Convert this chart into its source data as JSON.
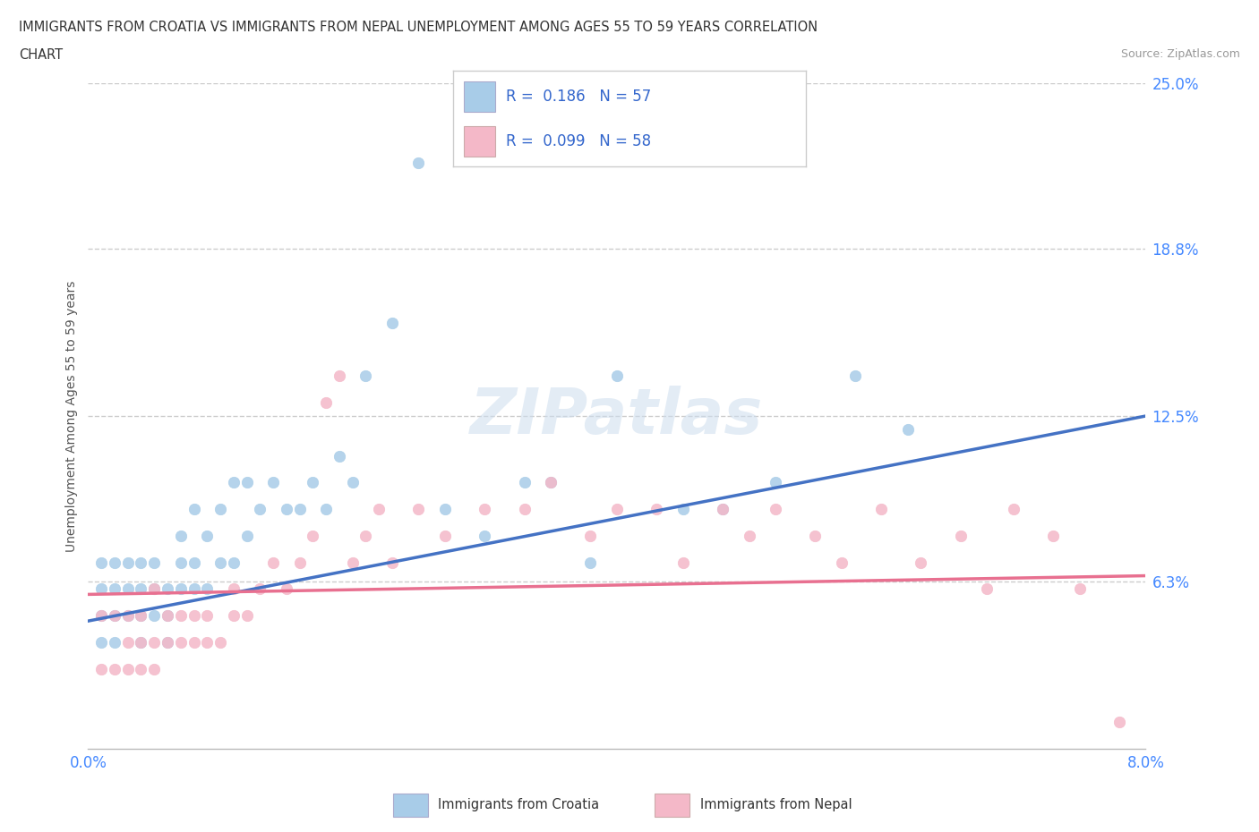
{
  "title_line1": "IMMIGRANTS FROM CROATIA VS IMMIGRANTS FROM NEPAL UNEMPLOYMENT AMONG AGES 55 TO 59 YEARS CORRELATION",
  "title_line2": "CHART",
  "source": "Source: ZipAtlas.com",
  "ylabel": "Unemployment Among Ages 55 to 59 years",
  "xlim": [
    0.0,
    0.08
  ],
  "ylim": [
    0.0,
    0.25
  ],
  "yticks": [
    0.0,
    0.063,
    0.125,
    0.188,
    0.25
  ],
  "ytick_labels": [
    "",
    "6.3%",
    "12.5%",
    "18.8%",
    "25.0%"
  ],
  "xtick_labels": [
    "0.0%",
    "8.0%"
  ],
  "xticks": [
    0.0,
    0.08
  ],
  "croatia_R": 0.186,
  "croatia_N": 57,
  "nepal_R": 0.099,
  "nepal_N": 58,
  "croatia_color": "#a8cce8",
  "nepal_color": "#f4b8c8",
  "croatia_line_color": "#4472c4",
  "nepal_line_color": "#e87090",
  "croatia_scatter_x": [
    0.001,
    0.001,
    0.001,
    0.001,
    0.002,
    0.002,
    0.002,
    0.002,
    0.003,
    0.003,
    0.003,
    0.004,
    0.004,
    0.004,
    0.004,
    0.005,
    0.005,
    0.005,
    0.006,
    0.006,
    0.006,
    0.007,
    0.007,
    0.007,
    0.008,
    0.008,
    0.008,
    0.009,
    0.009,
    0.01,
    0.01,
    0.011,
    0.011,
    0.012,
    0.012,
    0.013,
    0.014,
    0.015,
    0.016,
    0.017,
    0.018,
    0.019,
    0.02,
    0.021,
    0.023,
    0.025,
    0.027,
    0.03,
    0.033,
    0.035,
    0.038,
    0.04,
    0.045,
    0.048,
    0.052,
    0.058,
    0.062
  ],
  "croatia_scatter_y": [
    0.04,
    0.05,
    0.06,
    0.07,
    0.04,
    0.05,
    0.06,
    0.07,
    0.05,
    0.06,
    0.07,
    0.04,
    0.05,
    0.06,
    0.07,
    0.05,
    0.06,
    0.07,
    0.04,
    0.05,
    0.06,
    0.06,
    0.07,
    0.08,
    0.06,
    0.07,
    0.09,
    0.06,
    0.08,
    0.07,
    0.09,
    0.07,
    0.1,
    0.08,
    0.1,
    0.09,
    0.1,
    0.09,
    0.09,
    0.1,
    0.09,
    0.11,
    0.1,
    0.14,
    0.16,
    0.22,
    0.09,
    0.08,
    0.1,
    0.1,
    0.07,
    0.14,
    0.09,
    0.09,
    0.1,
    0.14,
    0.12
  ],
  "nepal_scatter_x": [
    0.001,
    0.001,
    0.002,
    0.002,
    0.003,
    0.003,
    0.003,
    0.004,
    0.004,
    0.004,
    0.005,
    0.005,
    0.005,
    0.006,
    0.006,
    0.007,
    0.007,
    0.008,
    0.008,
    0.009,
    0.009,
    0.01,
    0.011,
    0.011,
    0.012,
    0.013,
    0.014,
    0.015,
    0.016,
    0.017,
    0.018,
    0.019,
    0.02,
    0.021,
    0.022,
    0.023,
    0.025,
    0.027,
    0.03,
    0.033,
    0.035,
    0.038,
    0.04,
    0.043,
    0.045,
    0.048,
    0.05,
    0.052,
    0.055,
    0.057,
    0.06,
    0.063,
    0.066,
    0.068,
    0.07,
    0.073,
    0.075,
    0.078
  ],
  "nepal_scatter_y": [
    0.03,
    0.05,
    0.03,
    0.05,
    0.03,
    0.04,
    0.05,
    0.03,
    0.04,
    0.05,
    0.03,
    0.04,
    0.06,
    0.04,
    0.05,
    0.04,
    0.05,
    0.04,
    0.05,
    0.04,
    0.05,
    0.04,
    0.05,
    0.06,
    0.05,
    0.06,
    0.07,
    0.06,
    0.07,
    0.08,
    0.13,
    0.14,
    0.07,
    0.08,
    0.09,
    0.07,
    0.09,
    0.08,
    0.09,
    0.09,
    0.1,
    0.08,
    0.09,
    0.09,
    0.07,
    0.09,
    0.08,
    0.09,
    0.08,
    0.07,
    0.09,
    0.07,
    0.08,
    0.06,
    0.09,
    0.08,
    0.06,
    0.01
  ],
  "watermark": "ZIPatlas",
  "background_color": "#ffffff",
  "grid_color": "#cccccc"
}
